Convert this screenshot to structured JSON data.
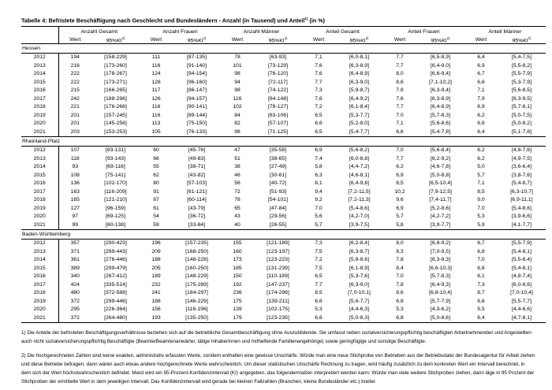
{
  "title": {
    "text": "Tabelle 4: Befristete Beschäftigung nach Geschlecht und Bundesländern - Anzahl (in Tausend) und Anteil",
    "sup": "1)",
    "suffix": " (in %)"
  },
  "header": {
    "groups": [
      "Anzahl Gesamt",
      "Anzahl Frauen",
      "Anzahl Männer",
      "Anteil Gesamt",
      "Anteil Frauen",
      "Anteil Männer"
    ],
    "wert_label": "Wert",
    "ki_label": "95%KI",
    "ki_sup": "2)"
  },
  "sections": [
    {
      "name": "Hessen",
      "rows": [
        {
          "year": "2012",
          "cells": [
            "194",
            "[158-229]",
            "111",
            "[87-135]",
            "78",
            "[63-93]",
            "7,1",
            "[6,0-8,1]",
            "7,7",
            "[6,5-8,9]",
            "6,4",
            "[5,4-7,5]"
          ]
        },
        {
          "year": "2013",
          "cells": [
            "216",
            "[173-260]",
            "116",
            "[91-140]",
            "101",
            "[73-129]",
            "7,6",
            "[6,3-8,9]",
            "7,7",
            "[6,4-9,0]",
            "6,9",
            "[5,5-8,2]"
          ]
        },
        {
          "year": "2014",
          "cells": [
            "222",
            "[178-267]",
            "124",
            "[94-154]",
            "98",
            "[76-120]",
            "7,6",
            "[6,4-8,9]",
            "8,0",
            "[6,6-9,4]",
            "6,7",
            "[5,5-7,9]"
          ]
        },
        {
          "year": "2015",
          "cells": [
            "222",
            "[173-271]",
            "128",
            "[96-160]",
            "94",
            "[72-117]",
            "7,7",
            "[6,3-9,0]",
            "8,6",
            "[7,1-10,2]",
            "6,6",
            "[5,3-7,9]"
          ]
        },
        {
          "year": "2016",
          "cells": [
            "215",
            "[166-265]",
            "117",
            "[86-147]",
            "98",
            "[74-122]",
            "7,3",
            "[5,9-8,7]",
            "7,8",
            "[6,3-9,4]",
            "7,1",
            "[5,6-8,5]"
          ]
        },
        {
          "year": "2017",
          "cells": [
            "242",
            "[188-296]",
            "126",
            "[94-157]",
            "116",
            "[84-148]",
            "7,8",
            "[6,4-9,2]",
            "7,6",
            "[6,3-8,9]",
            "7,9",
            "[6,3-9,5]"
          ]
        },
        {
          "year": "2018",
          "cells": [
            "221",
            "[176-266]",
            "116",
            "[90-141]",
            "102",
            "[78-127]",
            "7,2",
            "[6,1-8,4]",
            "7,7",
            "[6,4-8,9]",
            "6,9",
            "[5,7-8,1]"
          ]
        },
        {
          "year": "2019",
          "cells": [
            "201",
            "[157-245]",
            "116",
            "[89-144]",
            "84",
            "[63-106]",
            "6,5",
            "[5,3-7,7]",
            "7,0",
            "[5,7-8,3]",
            "6,2",
            "[5,0-7,5]"
          ]
        },
        {
          "year": "2020",
          "cells": [
            "201",
            "[145-258]",
            "113",
            "[75-150]",
            "82",
            "[57-107]",
            "6,6",
            "[5,2-8,0]",
            "7,1",
            "[5,6-8,6]",
            "6,6",
            "[5,0-8,2]"
          ]
        },
        {
          "year": "2021",
          "cells": [
            "203",
            "[153-253]",
            "105",
            "[76-133]",
            "98",
            "[71-125]",
            "6,5",
            "[5,4-7,7]",
            "6,6",
            "[5,4-7,8]",
            "6,4",
            "[5,1-7,8]"
          ]
        }
      ]
    },
    {
      "name": "Rheinland-Pfalz",
      "rows": [
        {
          "year": "2012",
          "cells": [
            "107",
            "[83-131]",
            "60",
            "[45-76]",
            "47",
            "[35-58]",
            "6,9",
            "[5,6-8,2]",
            "7,0",
            "[5,6-8,4]",
            "6,2",
            "[4,8-7,6]"
          ]
        },
        {
          "year": "2013",
          "cells": [
            "118",
            "[93-143]",
            "66",
            "[49-83]",
            "51",
            "[38-65]",
            "7,4",
            "[6,0-8,8]",
            "7,7",
            "[6,2-9,2]",
            "6,2",
            "[4,9-7,5]"
          ]
        },
        {
          "year": "2014",
          "cells": [
            "93",
            "[69-116]",
            "55",
            "[38-71]",
            "38",
            "[27-49]",
            "5,8",
            "[4,4-7,2]",
            "6,2",
            "[4,6-7,8]",
            "5,0",
            "[3,6-6,4]"
          ]
        },
        {
          "year": "2015",
          "cells": [
            "108",
            "[75-141]",
            "62",
            "[43-82]",
            "46",
            "[30-61]",
            "6,3",
            "[4,6-8,1]",
            "6,9",
            "[5,0-8,8]",
            "5,7",
            "[3,8-7,6]"
          ]
        },
        {
          "year": "2016",
          "cells": [
            "136",
            "[102-170]",
            "80",
            "[57-103]",
            "56",
            "[40-72]",
            "8,1",
            "[6,4-9,8]",
            "8,5",
            "[6,5-10,4]",
            "7,1",
            "[5,4-8,7]"
          ]
        },
        {
          "year": "2017",
          "cells": [
            "163",
            "[116-209]",
            "91",
            "[61-121]",
            "72",
            "[51-93]",
            "9,4",
            "[7,2-11,5]",
            "10,2",
            "[7,9-12,5]",
            "8,5",
            "[6,3-10,7]"
          ]
        },
        {
          "year": "2018",
          "cells": [
            "165",
            "[121-210]",
            "87",
            "[60-114]",
            "78",
            "[54-101]",
            "9,2",
            "[7,2-11,3]",
            "9,6",
            "[7,4-11,7]",
            "9,0",
            "[6,9-11,1]"
          ]
        },
        {
          "year": "2019",
          "cells": [
            "127",
            "[96-159]",
            "61",
            "[43-79]",
            "65",
            "[47-84]",
            "7,0",
            "[5,4-8,6]",
            "6,9",
            "[5,2-8,6]",
            "7,0",
            "[5,4-8,6]"
          ]
        },
        {
          "year": "2020",
          "cells": [
            "97",
            "[69-125]",
            "54",
            "[36-72]",
            "43",
            "[29-56]",
            "5,6",
            "[4,2-7,0]",
            "5,7",
            "[4,2-7,2]",
            "5,3",
            "[3,9-6,6]"
          ]
        },
        {
          "year": "2021",
          "cells": [
            "99",
            "[60-138]",
            "59",
            "[33-84]",
            "40",
            "[26-55]",
            "5,7",
            "[3,9-7,5]",
            "5,8",
            "[3,9-7,7]",
            "5,9",
            "[4,1-7,7]"
          ]
        }
      ]
    },
    {
      "name": "Baden-Württemberg",
      "rows": [
        {
          "year": "2012",
          "cells": [
            "357",
            "[290-423]",
            "196",
            "[157-235]",
            "155",
            "[121-189]",
            "7,3",
            "[6,2-8,4]",
            "8,0",
            "[6,8-9,2]",
            "6,7",
            "[5,5-7,9]"
          ]
        },
        {
          "year": "2013",
          "cells": [
            "371",
            "[299-443]",
            "209",
            "[168-250]",
            "160",
            "[123-197]",
            "7,5",
            "[6,3-8,7]",
            "8,3",
            "[7,0-9,5]",
            "6,8",
            "[5,4-8,1]"
          ]
        },
        {
          "year": "2014",
          "cells": [
            "361",
            "[276-446]",
            "188",
            "[148-228]",
            "173",
            "[123-223]",
            "7,2",
            "[5,8-8,6]",
            "7,8",
            "[6,3-9,3]",
            "7,0",
            "[5,5-8,4]"
          ]
        },
        {
          "year": "2015",
          "cells": [
            "389",
            "[299-479]",
            "205",
            "[160-250]",
            "185",
            "[131-239]",
            "7,5",
            "[6,1-8,9]",
            "8,4",
            "[6,6-10,3]",
            "6,8",
            "[5,4-8,1]"
          ]
        },
        {
          "year": "2016",
          "cells": [
            "340",
            "[267-412]",
            "189",
            "[148-229]",
            "150",
            "[110-189]",
            "6,5",
            "[5,3-7,6]",
            "7,0",
            "[5,7-8,3]",
            "6,1",
            "[4,8-7,4]"
          ]
        },
        {
          "year": "2017",
          "cells": [
            "424",
            "[335-514]",
            "232",
            "[175-289]",
            "192",
            "[147-237]",
            "7,7",
            "[6,3-9,0]",
            "7,8",
            "[6,4-9,3]",
            "7,3",
            "[6,0-8,6]"
          ]
        },
        {
          "year": "2018",
          "cells": [
            "480",
            "[372-588]",
            "241",
            "[184-297]",
            "236",
            "[174-298]",
            "8,5",
            "[7,0-10,1]",
            "8,6",
            "[6,8-10,4]",
            "8,7",
            "[7,0-10,4]"
          ]
        },
        {
          "year": "2019",
          "cells": [
            "372",
            "[299-446]",
            "188",
            "[146-229]",
            "175",
            "[139-211]",
            "6,6",
            "[5,6-7,7]",
            "6,8",
            "[5,7-7,9]",
            "6,6",
            "[5,5-7,7]"
          ]
        },
        {
          "year": "2020",
          "cells": [
            "295",
            "[226-364]",
            "156",
            "[116-196]",
            "139",
            "[102-175]",
            "5,3",
            "[4,4-6,3]",
            "5,3",
            "[4,3-6,2]",
            "5,5",
            "[4,4-6,6]"
          ]
        },
        {
          "year": "2021",
          "cells": [
            "372",
            "[264-480]",
            "193",
            "[135-250]",
            "179",
            "[123-235]",
            "6,6",
            "[5,0-8,3]",
            "6,8",
            "[5,0-8,6]",
            "6,4",
            "[4,7-8,1]"
          ]
        }
      ]
    }
  ],
  "footnotes": [
    "1) Die Anteile der befristeten Beschäftigungsverhältnisse beziehen sich auf die betriebliche Gesamtbeschäftigung ohne Auszubildende. Sie umfasst neben sozialversicherungspflichtig beschäftigten Arbeitnehmenden und Angestellten auch nicht sozialversicherungspflichtig Beschäftigte (Beamte/Beamtenanwärter, tätige InhaberInnen und mithelfende Familienangehörige) sowie geringfügige und sonstige Beschäftigte.",
    "2) Die hochgerechneten Zahlen sind keine exakten, administrativ erfassten Werte, sondern enthalten eine gewisse Unschärfe. Würde man eine neue Stichprobe von Betrieben aus der Betriebsdatei der Bundesagentur für Arbeit ziehen und diese Betriebe befragen, dann wären auch etwas andere hochgerechnete Werte wahrscheinlich. Um dieser statistischen Unschärfe Rechnung zu tragen, wird häufig zusätzlich zu dem konkreten Wert ein Intervall berechnet, in dem sich der Wert höchstwahrscheinlich befindet. Meist wird ein 95-Prozent-Konfidenzintervall (KI) angegeben, das folgendermaßen interpretiert werden kann: Würde man viele weitere Stichproben ziehen, dann läge in 95 Prozent der Stichproben der ermittelte Wert in dem jeweiligen Intervall. Das Konfidenzintervall wird gerade bei kleinen Fallzahlen (Branchen, kleine Bundesländer etc.) breiter."
  ]
}
